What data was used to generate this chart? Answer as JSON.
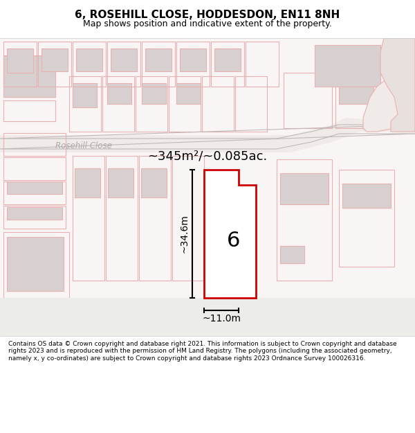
{
  "title": "6, ROSEHILL CLOSE, HODDESDON, EN11 8NH",
  "subtitle": "Map shows position and indicative extent of the property.",
  "footer": "Contains OS data © Crown copyright and database right 2021. This information is subject to Crown copyright and database rights 2023 and is reproduced with the permission of HM Land Registry. The polygons (including the associated geometry, namely x, y co-ordinates) are subject to Crown copyright and database rights 2023 Ordnance Survey 100026316.",
  "area_label": "~345m²/~0.085ac.",
  "width_label": "~11.0m",
  "height_label": "~34.6m",
  "number_label": "6",
  "background_map_color": "#f9f5f5",
  "road_color": "#e8e0e0",
  "plot_outline_color": "#cc0000",
  "plot_fill_color": "#ffffff",
  "building_fill_color": "#d8d0d0",
  "road_label": "Rosehill Close",
  "road_label_color": "#aaaaaa",
  "footer_bg_color": "#ffffff",
  "map_bg": "#faf5f5"
}
